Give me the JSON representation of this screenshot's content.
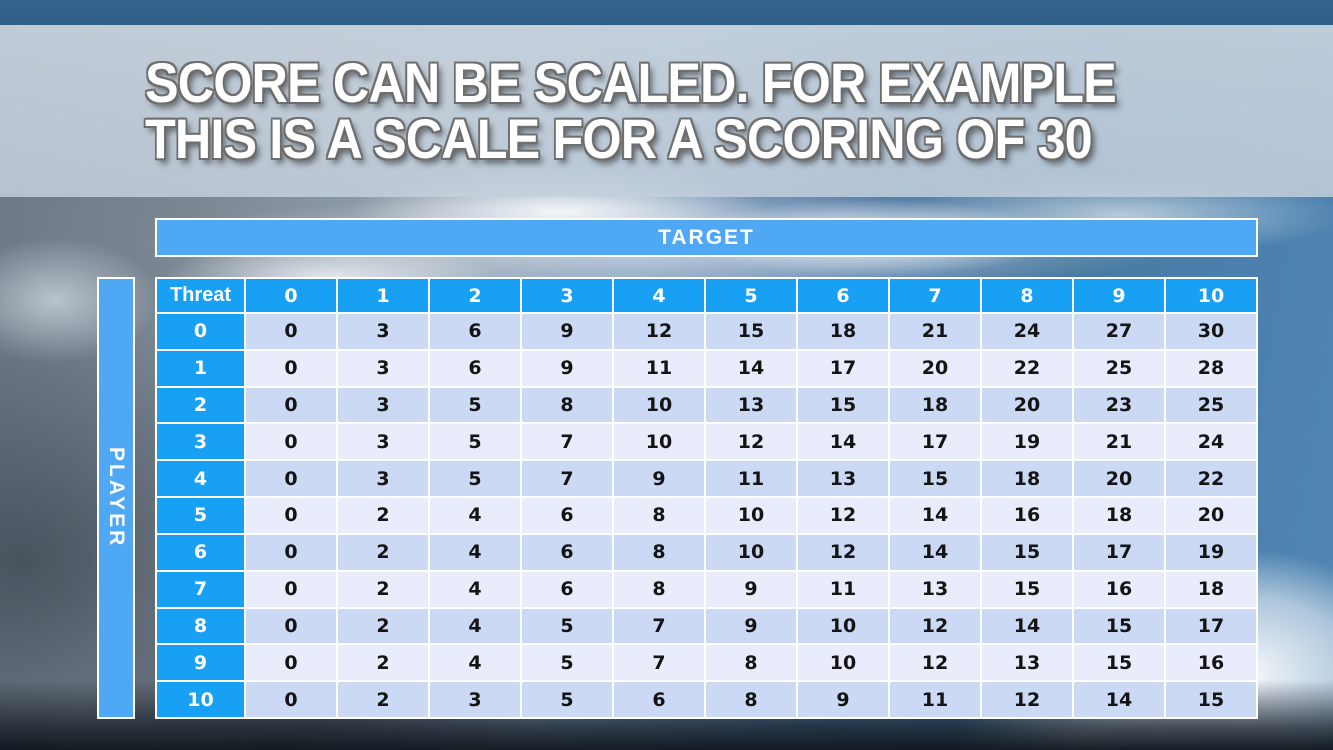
{
  "title": {
    "line1": "SCORE CAN BE SCALED. FOR EXAMPLE",
    "line2": "THIS IS A SCALE FOR A SCORING OF 30"
  },
  "table": {
    "target_label": "TARGET",
    "player_label": "PLAYER",
    "corner_label": "Threat",
    "column_headers": [
      "0",
      "1",
      "2",
      "3",
      "4",
      "5",
      "6",
      "7",
      "8",
      "9",
      "10"
    ],
    "row_headers": [
      "0",
      "1",
      "2",
      "3",
      "4",
      "5",
      "6",
      "7",
      "8",
      "9",
      "10"
    ],
    "rows": [
      [
        0,
        3,
        6,
        9,
        12,
        15,
        18,
        21,
        24,
        27,
        30
      ],
      [
        0,
        3,
        6,
        9,
        11,
        14,
        17,
        20,
        22,
        25,
        28
      ],
      [
        0,
        3,
        5,
        8,
        10,
        13,
        15,
        18,
        20,
        23,
        25
      ],
      [
        0,
        3,
        5,
        7,
        10,
        12,
        14,
        17,
        19,
        21,
        24
      ],
      [
        0,
        3,
        5,
        7,
        9,
        11,
        13,
        15,
        18,
        20,
        22
      ],
      [
        0,
        2,
        4,
        6,
        8,
        10,
        12,
        14,
        16,
        18,
        20
      ],
      [
        0,
        2,
        4,
        6,
        8,
        10,
        12,
        14,
        15,
        17,
        19
      ],
      [
        0,
        2,
        4,
        6,
        8,
        9,
        11,
        13,
        15,
        16,
        18
      ],
      [
        0,
        2,
        4,
        5,
        7,
        9,
        10,
        12,
        14,
        15,
        17
      ],
      [
        0,
        2,
        4,
        5,
        7,
        8,
        10,
        12,
        13,
        15,
        16
      ],
      [
        0,
        2,
        3,
        5,
        6,
        8,
        9,
        11,
        12,
        14,
        15
      ]
    ]
  },
  "colors": {
    "header_blue": "#17a0f4",
    "band_blue": "#4fa8f3",
    "row_even": "#cbd9f4",
    "row_odd": "#e9edfb",
    "top_bar": "#31618a",
    "title_band": "#c6d1de"
  }
}
